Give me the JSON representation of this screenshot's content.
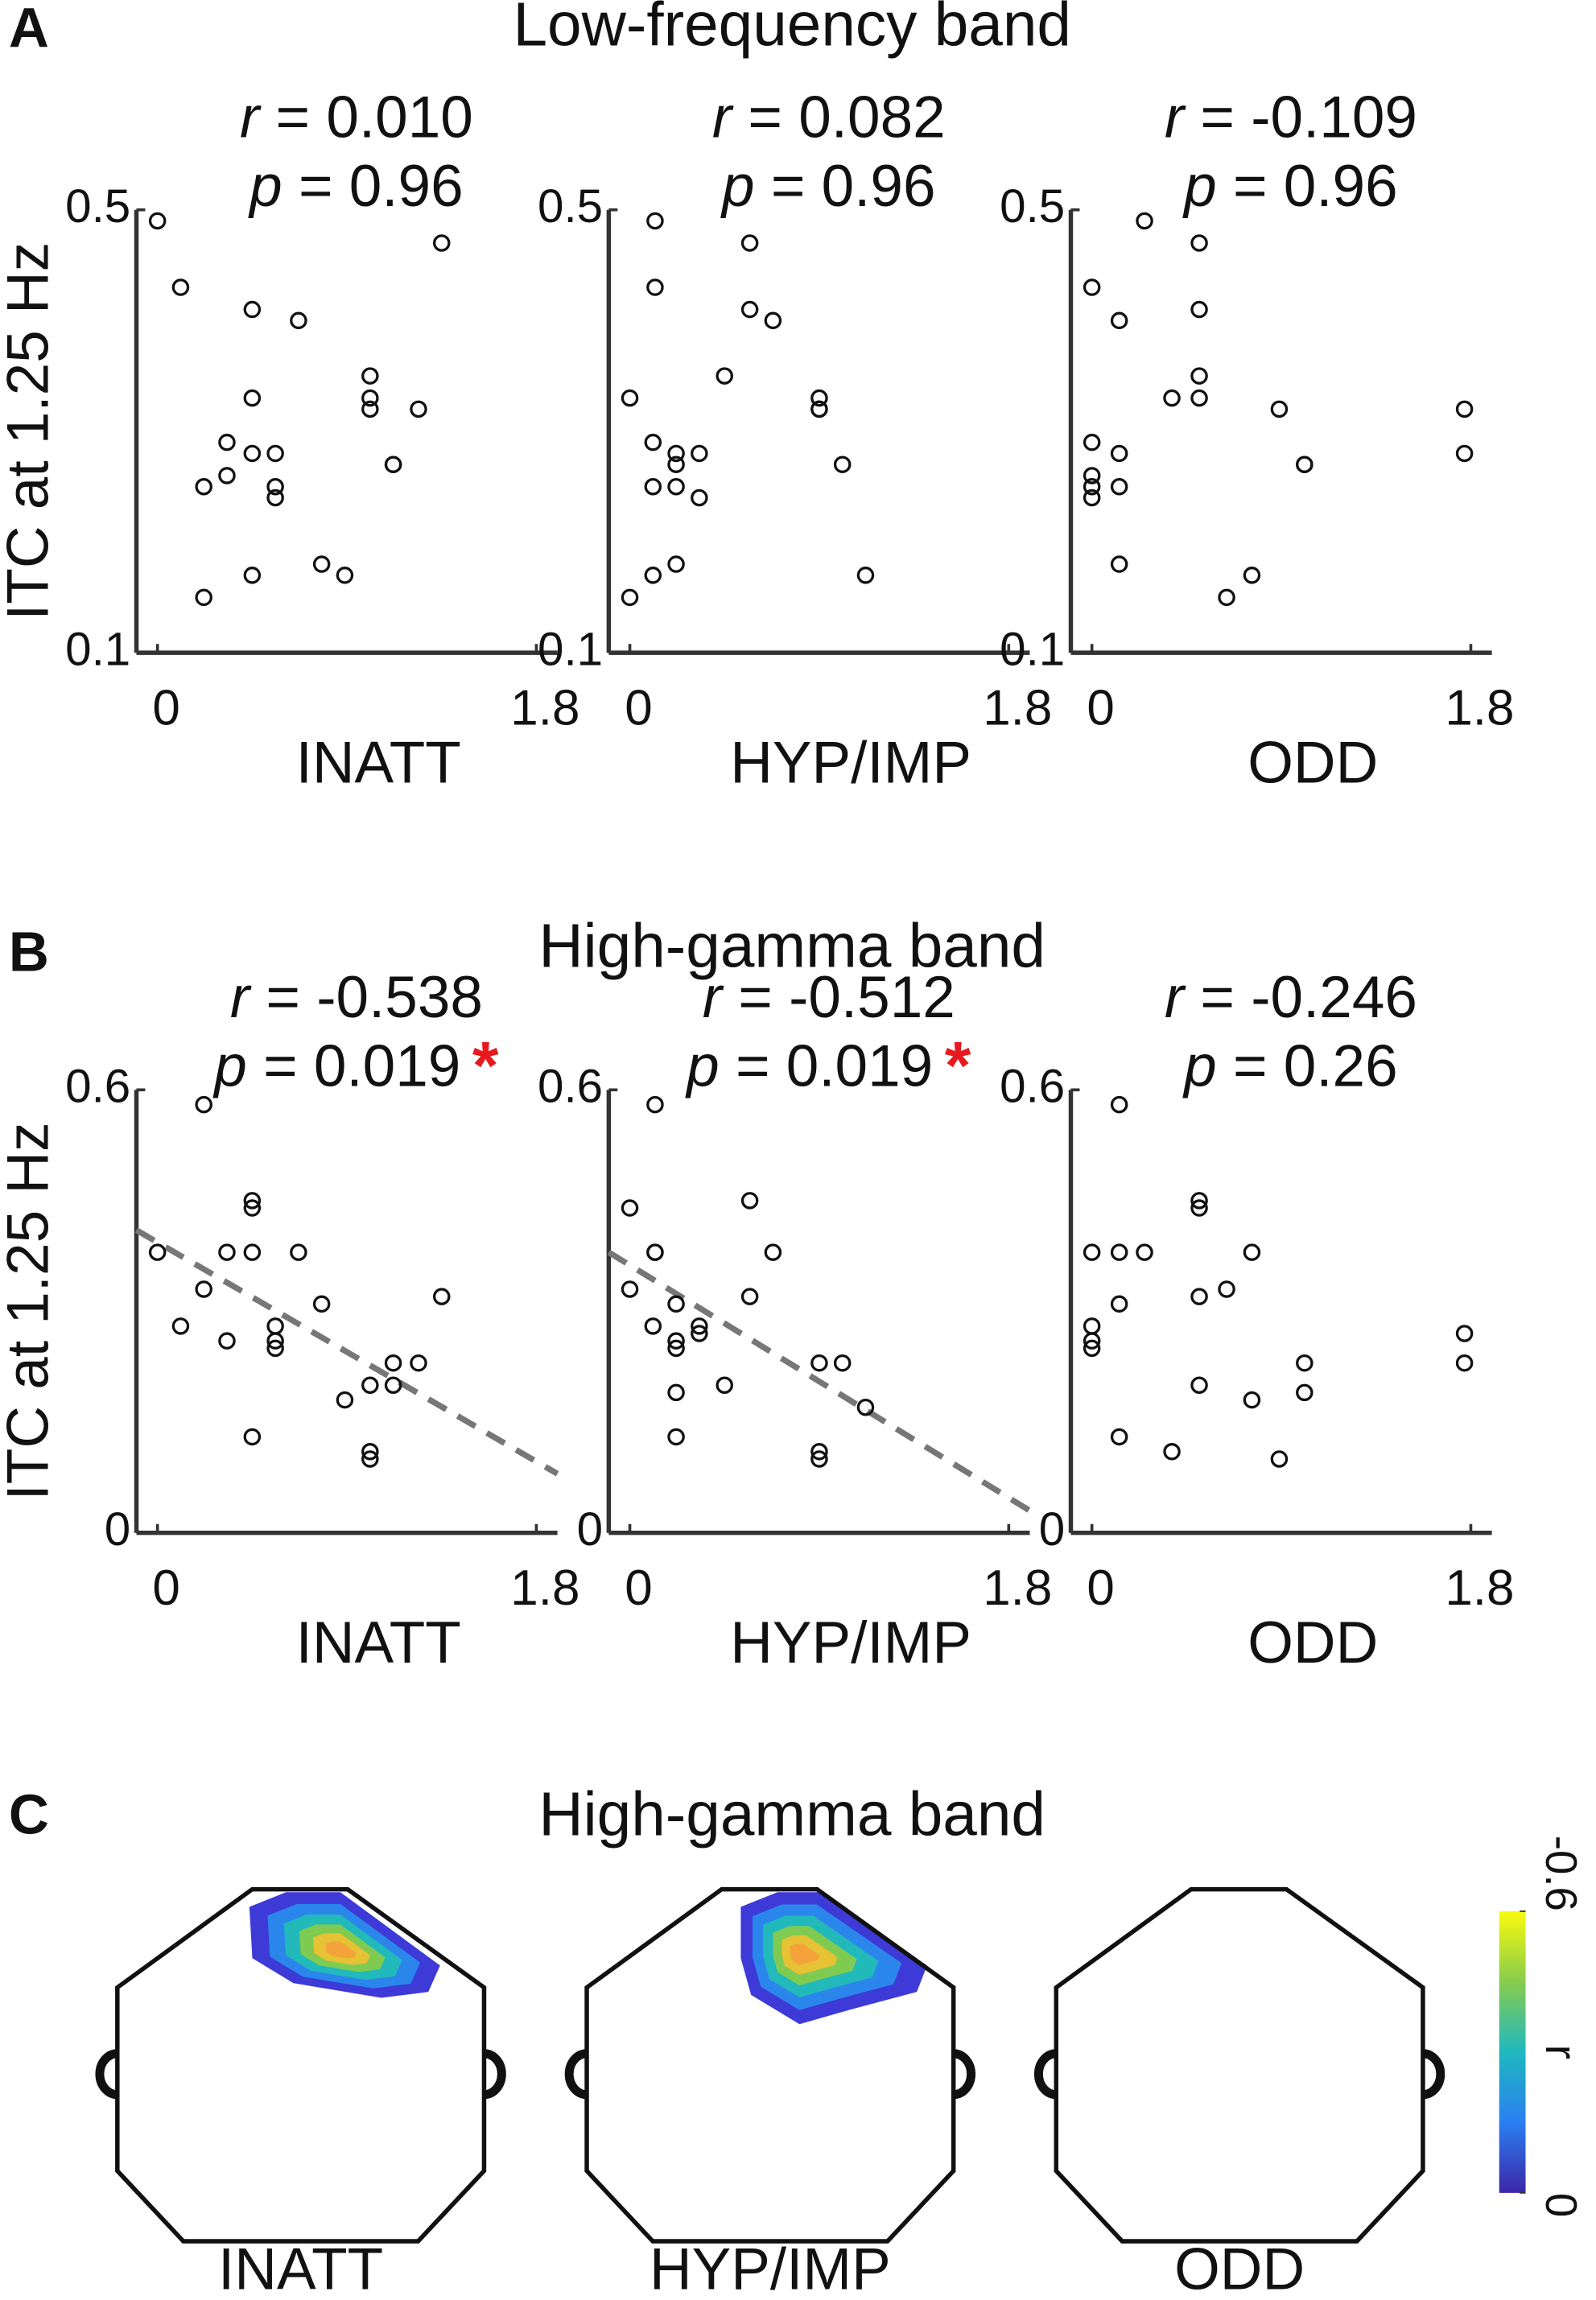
{
  "panels": [
    {
      "letter": "A",
      "title": "Low-frequency band"
    },
    {
      "letter": "B",
      "title": "High-gamma band"
    },
    {
      "letter": "C",
      "title": "High-gamma band"
    }
  ],
  "chart_data": [
    {
      "type": "scatter",
      "xlabel": "INATT",
      "ylabel": "ITC at 1.25 Hz",
      "stats": [
        {
          "symbol": "r",
          "text": "= 0.010"
        },
        {
          "symbol": "p",
          "text": "= 0.96"
        }
      ],
      "xlim": [
        -0.1,
        1.9
      ],
      "xticks": [
        0,
        1.8
      ],
      "ylim": [
        0.1,
        0.5
      ],
      "yticks": [
        0.1,
        0.5
      ],
      "series": [
        {
          "color": "#111111",
          "x": [
            0,
            0.11,
            0.45,
            0.67,
            1.35,
            1.01,
            1.01,
            1.01,
            0.45,
            1.24,
            0.33,
            0.45,
            0.56,
            1.12,
            1.12,
            0.33,
            0.22,
            0.56,
            0.56,
            0.78,
            0.89,
            0.45,
            0.22
          ],
          "values": [
            0.49,
            0.43,
            0.41,
            0.4,
            0.47,
            0.35,
            0.33,
            0.32,
            0.33,
            0.32,
            0.29,
            0.28,
            0.28,
            0.27,
            0.27,
            0.26,
            0.25,
            0.25,
            0.24,
            0.18,
            0.17,
            0.17,
            0.15
          ]
        }
      ]
    },
    {
      "type": "scatter",
      "xlabel": "HYP/IMP",
      "stats": [
        {
          "symbol": "r",
          "text": "= 0.082"
        },
        {
          "symbol": "p",
          "text": "= 0.96"
        }
      ],
      "xlim": [
        -0.1,
        1.9
      ],
      "xticks": [
        0,
        1.8
      ],
      "ylim": [
        0.1,
        0.5
      ],
      "yticks": [
        0.1,
        0.5
      ],
      "series": [
        {
          "color": "#111111",
          "x": [
            0.12,
            0.12,
            0.57,
            0.57,
            0.68,
            0.45,
            0,
            0.9,
            0.9,
            0.9,
            0.11,
            0.22,
            0.33,
            0.22,
            0.22,
            0.11,
            0.33,
            1.01,
            0.22,
            0.11,
            1.12,
            0
          ],
          "values": [
            0.49,
            0.43,
            0.47,
            0.41,
            0.4,
            0.35,
            0.33,
            0.33,
            0.32,
            0.32,
            0.29,
            0.28,
            0.28,
            0.27,
            0.25,
            0.25,
            0.24,
            0.27,
            0.18,
            0.17,
            0.17,
            0.15
          ]
        }
      ]
    },
    {
      "type": "scatter",
      "xlabel": "ODD",
      "stats": [
        {
          "symbol": "r",
          "text": "= -0.109"
        },
        {
          "symbol": "p",
          "text": "= 0.96"
        }
      ],
      "xlim": [
        -0.1,
        1.9
      ],
      "xticks": [
        0,
        1.8
      ],
      "ylim": [
        0.1,
        0.5
      ],
      "yticks": [
        0.1,
        0.5
      ],
      "series": [
        {
          "color": "#111111",
          "x": [
            0,
            0.13,
            0.25,
            0.51,
            0.51,
            0.51,
            0.51,
            0.38,
            0,
            0.13,
            0,
            0,
            0,
            0.13,
            0.89,
            1.01,
            1.01,
            1.77,
            1.77,
            0.13,
            0.76,
            0.64
          ],
          "values": [
            0.43,
            0.4,
            0.49,
            0.47,
            0.41,
            0.35,
            0.33,
            0.33,
            0.29,
            0.28,
            0.26,
            0.25,
            0.24,
            0.25,
            0.32,
            0.27,
            0.27,
            0.32,
            0.28,
            0.18,
            0.17,
            0.15
          ]
        }
      ]
    },
    {
      "type": "scatter",
      "xlabel": "INATT",
      "ylabel": "ITC at 1.25 Hz",
      "stats": [
        {
          "symbol": "r",
          "text": "= -0.538"
        },
        {
          "symbol": "p",
          "text": "= 0.019",
          "mark": "*",
          "mark_color": "#e8191e"
        }
      ],
      "xlim": [
        -0.1,
        1.9
      ],
      "xticks": [
        0,
        1.8
      ],
      "ylim": [
        0,
        0.6
      ],
      "yticks": [
        0,
        0.6
      ],
      "trend_line": {
        "color": "#777777",
        "x": [
          -0.1,
          1.9
        ],
        "values": [
          0.41,
          0.08
        ]
      },
      "series": [
        {
          "color": "#111111",
          "x": [
            0.22,
            0.45,
            0.45,
            0,
            0.33,
            0.45,
            0.67,
            0.22,
            0.78,
            1.35,
            0.11,
            0.56,
            0.56,
            0.33,
            0.56,
            1.12,
            1.24,
            1.01,
            1.12,
            0.89,
            0.45,
            1.01,
            1.01
          ],
          "values": [
            0.58,
            0.45,
            0.44,
            0.38,
            0.38,
            0.38,
            0.38,
            0.33,
            0.31,
            0.32,
            0.28,
            0.28,
            0.26,
            0.26,
            0.25,
            0.23,
            0.23,
            0.2,
            0.2,
            0.18,
            0.13,
            0.11,
            0.1
          ]
        }
      ]
    },
    {
      "type": "scatter",
      "xlabel": "HYP/IMP",
      "stats": [
        {
          "symbol": "r",
          "text": "= -0.512"
        },
        {
          "symbol": "p",
          "text": "= 0.019",
          "mark": "*",
          "mark_color": "#e8191e"
        }
      ],
      "xlim": [
        -0.1,
        1.9
      ],
      "xticks": [
        0,
        1.8
      ],
      "ylim": [
        0,
        0.6
      ],
      "yticks": [
        0,
        0.6
      ],
      "trend_line": {
        "color": "#777777",
        "x": [
          -0.1,
          1.9
        ],
        "values": [
          0.38,
          0.03
        ]
      },
      "series": [
        {
          "color": "#111111",
          "x": [
            0.12,
            0,
            0.57,
            0.12,
            0.12,
            0.68,
            0,
            0.22,
            0.57,
            0.11,
            0.33,
            0.33,
            0.22,
            0.22,
            0.9,
            1.01,
            0.45,
            0.22,
            1.12,
            0.22,
            0.9,
            0.9
          ],
          "values": [
            0.58,
            0.44,
            0.45,
            0.38,
            0.38,
            0.38,
            0.33,
            0.31,
            0.32,
            0.28,
            0.28,
            0.27,
            0.26,
            0.25,
            0.23,
            0.23,
            0.2,
            0.19,
            0.17,
            0.13,
            0.11,
            0.1
          ]
        }
      ]
    },
    {
      "type": "scatter",
      "xlabel": "ODD",
      "stats": [
        {
          "symbol": "r",
          "text": "= -0.246"
        },
        {
          "symbol": "p",
          "text": "= 0.26"
        }
      ],
      "xlim": [
        -0.1,
        1.9
      ],
      "xticks": [
        0,
        1.8
      ],
      "ylim": [
        0,
        0.6
      ],
      "yticks": [
        0,
        0.6
      ],
      "series": [
        {
          "color": "#111111",
          "x": [
            0.13,
            0.51,
            0.51,
            0,
            0.13,
            0.25,
            0.76,
            0.64,
            0.51,
            0.13,
            0,
            0,
            0,
            1.77,
            1.77,
            1.01,
            1.01,
            0.51,
            0.76,
            0.13,
            0.38,
            0.89
          ],
          "values": [
            0.58,
            0.45,
            0.44,
            0.38,
            0.38,
            0.38,
            0.38,
            0.33,
            0.32,
            0.31,
            0.28,
            0.26,
            0.25,
            0.27,
            0.23,
            0.23,
            0.19,
            0.2,
            0.18,
            0.13,
            0.11,
            0.1
          ]
        }
      ]
    }
  ],
  "topomaps": {
    "labels": [
      "INATT",
      "HYP/IMP",
      "ODD"
    ],
    "colorbar": {
      "label": "r",
      "clim": [
        0,
        -0.6
      ],
      "ticks": [
        0,
        -0.6
      ]
    }
  }
}
